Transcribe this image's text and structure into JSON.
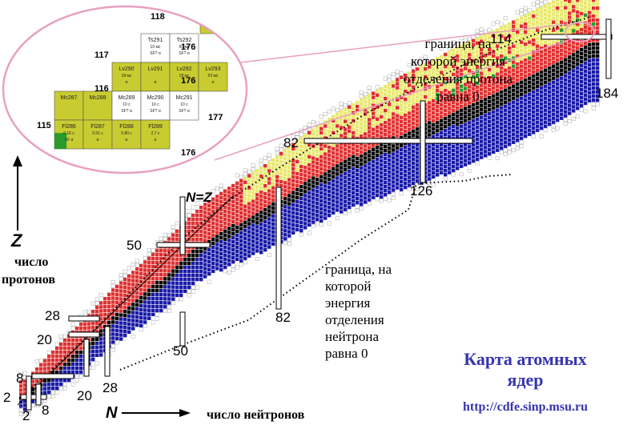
{
  "axes": {
    "z_symbol": "Z",
    "z_label_line1": "число",
    "z_label_line2": "протонов",
    "n_symbol": "N",
    "n_label": "число нейтронов",
    "nz_line_label": "N=Z"
  },
  "magic_proton_labels": [
    "2",
    "8",
    "20",
    "28",
    "50",
    "82",
    "114"
  ],
  "magic_neutron_labels": [
    "2",
    "8",
    "20",
    "28",
    "50",
    "82",
    "126",
    "184"
  ],
  "proton_dripline_note": [
    "граница, на",
    "которой энергия",
    "отделения протона",
    "равна 0"
  ],
  "neutron_dripline_note": [
    "граница, на",
    "которой",
    "энергия",
    "отделения",
    "нейтрона",
    "равна 0"
  ],
  "title_line1": "Карта атомных",
  "title_line2": "ядер",
  "url": "http://cdfe.sinp.msu.ru",
  "colors": {
    "red": "#e03030",
    "blue": "#1a1aa8",
    "yellow": "#e8e870",
    "green": "#2a9a2a",
    "olive": "#c8cc30",
    "title_blue": "#3535b0",
    "magnifier": "#e8a0c0"
  },
  "inset": {
    "row_labels": [
      "118",
      "117",
      "116",
      "115",
      "114"
    ],
    "col_labels": [
      "176",
      "176",
      "177",
      "176"
    ],
    "cells": [
      {
        "name": "Og294",
        "val": "1.8 мс",
        "mode": "α",
        "fill": "olive"
      },
      {
        "name": "Ts291",
        "val": "10 мс",
        "mode": "SF? α",
        "fill": "white"
      },
      {
        "name": "Ts292",
        "val": "50 мс",
        "mode": "SF? α",
        "fill": "white"
      },
      {
        "name": "Lv290",
        "val": "18 мс",
        "mode": "α",
        "fill": "olive"
      },
      {
        "name": "Lv291",
        "val": "",
        "mode": "α",
        "fill": "olive"
      },
      {
        "name": "Lv292",
        "val": "18 мс",
        "mode": "α",
        "fill": "olive"
      },
      {
        "name": "Lv293",
        "val": "53 мс",
        "mode": "α",
        "fill": "olive"
      },
      {
        "name": "Mc287",
        "val": "",
        "mode": "",
        "fill": "olive"
      },
      {
        "name": "Mc288",
        "val": "",
        "mode": "",
        "fill": "olive"
      },
      {
        "name": "Mc289",
        "val": "10 с",
        "mode": "SF? α",
        "fill": "white"
      },
      {
        "name": "Mc290",
        "val": "10 с",
        "mode": "SF? α",
        "fill": "white"
      },
      {
        "name": "Mc291",
        "val": "10 с",
        "mode": "SF? α",
        "fill": "white"
      },
      {
        "name": "Fl286",
        "val": "0.16 с",
        "mode": "SF α",
        "fill": "green"
      },
      {
        "name": "Fl287",
        "val": "0.51 с",
        "mode": "α",
        "fill": "olive"
      },
      {
        "name": "Fl288",
        "val": "0.80 с",
        "mode": "α",
        "fill": "olive"
      },
      {
        "name": "Fl289",
        "val": "2.7 с",
        "mode": "α",
        "fill": "olive"
      }
    ]
  }
}
